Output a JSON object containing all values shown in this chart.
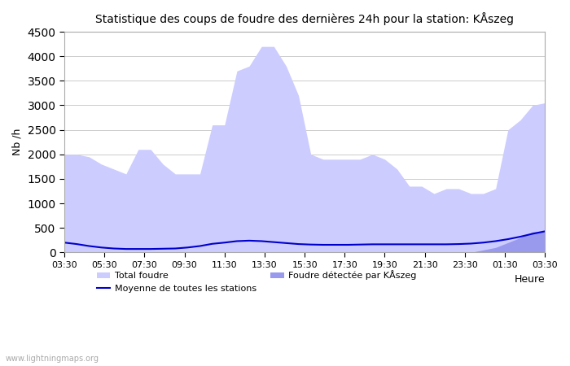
{
  "title": "Statistique des coups de foudre des dernières 24h pour la station: KÅszeg",
  "xlabel": "Heure",
  "ylabel": "Nb /h",
  "ylim": [
    0,
    4500
  ],
  "yticks": [
    0,
    500,
    1000,
    1500,
    2000,
    2500,
    3000,
    3500,
    4000,
    4500
  ],
  "xtick_labels": [
    "03:30",
    "05:30",
    "07:30",
    "09:30",
    "11:30",
    "13:30",
    "15:30",
    "17:30",
    "19:30",
    "21:30",
    "23:30",
    "01:30",
    "03:30"
  ],
  "color_total": "#ccccff",
  "color_detected": "#9999ee",
  "color_line": "#0000cc",
  "color_bg": "#ffffff",
  "color_grid": "#cccccc",
  "watermark": "www.lightningmaps.org",
  "legend_total": "Total foudre",
  "legend_detected": "Foudre détectée par KÅszeg",
  "legend_moyenne": "Moyenne de toutes les stations",
  "total_foudre": [
    2000,
    2000,
    1950,
    1800,
    1700,
    1600,
    2100,
    2100,
    1800,
    1600,
    1600,
    1600,
    2600,
    2600,
    3700,
    3800,
    4200,
    4200,
    3800,
    3200,
    2000,
    1900,
    1900,
    1900,
    1900,
    2000,
    1900,
    1700,
    1350,
    1350,
    1200,
    1300,
    1300,
    1200,
    1200,
    1300,
    2500,
    2700,
    3000,
    3050
  ],
  "detected_foudre": [
    0,
    0,
    0,
    0,
    0,
    0,
    0,
    0,
    0,
    0,
    0,
    0,
    0,
    0,
    0,
    0,
    0,
    0,
    0,
    0,
    0,
    0,
    0,
    0,
    0,
    0,
    0,
    0,
    0,
    0,
    0,
    0,
    0,
    0,
    50,
    100,
    200,
    300,
    420,
    430
  ],
  "moyenne": [
    200,
    170,
    130,
    100,
    80,
    70,
    70,
    70,
    75,
    80,
    100,
    130,
    175,
    200,
    230,
    240,
    230,
    210,
    190,
    170,
    160,
    155,
    155,
    155,
    160,
    165,
    165,
    165,
    165,
    165,
    165,
    165,
    170,
    180,
    200,
    230,
    270,
    320,
    380,
    430
  ]
}
